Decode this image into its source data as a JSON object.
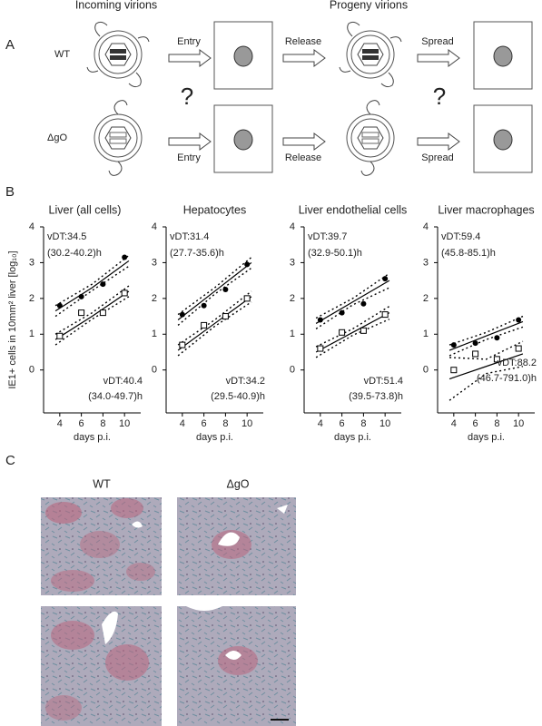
{
  "panel_a": {
    "label": "A",
    "incoming": "Incoming virions",
    "progeny": "Progeny virions",
    "rows": [
      {
        "label": "WT",
        "steps": [
          "Entry",
          "Release",
          "Spread"
        ]
      },
      {
        "label": "ΔgO",
        "steps": [
          "Entry",
          "Release",
          "Spread"
        ]
      }
    ],
    "questions": [
      "?",
      "?"
    ]
  },
  "panel_b": {
    "label": "B"
  },
  "chart_data": [
    {
      "type": "scatter",
      "title": "Liver (all cells)",
      "xlabel": "days p.i.",
      "ylabel": "IE1+ cells in 10mm² liver [log₁₀]",
      "xlim": [
        2.5,
        11.5
      ],
      "xticks": [
        4,
        6,
        8,
        10
      ],
      "ylim": [
        -1.2,
        4
      ],
      "yticks": [
        0,
        1,
        2,
        3,
        4
      ],
      "x": [
        4,
        6,
        8,
        10
      ],
      "series": [
        {
          "marker": "filled",
          "color": "#000000",
          "values": [
            1.8,
            2.05,
            2.4,
            3.15
          ]
        },
        {
          "marker": "open",
          "color": "#000000",
          "values": [
            0.95,
            1.6,
            1.6,
            2.15
          ]
        }
      ],
      "fit_x": [
        3.6,
        7,
        10.4
      ],
      "fits": [
        {
          "values": [
            1.65,
            2.3,
            3.05
          ],
          "lower": [
            1.5,
            2.22,
            2.9
          ],
          "upper": [
            1.8,
            2.4,
            3.2
          ]
        },
        {
          "values": [
            0.85,
            1.5,
            2.2
          ],
          "lower": [
            0.7,
            1.42,
            2.05
          ],
          "upper": [
            1.0,
            1.6,
            2.35
          ]
        }
      ],
      "annotations": [
        "vDT:34.5",
        "(30.2-40.2)h",
        "vDT:40.4",
        "(34.0-49.7)h"
      ]
    },
    {
      "type": "scatter",
      "title": "Hepatocytes",
      "xlabel": "days p.i.",
      "xlim": [
        2.5,
        11.5
      ],
      "xticks": [
        4,
        6,
        8,
        10
      ],
      "ylim": [
        -1.2,
        4
      ],
      "yticks": [
        0,
        1,
        2,
        3,
        4
      ],
      "x": [
        4,
        6,
        8,
        10
      ],
      "series": [
        {
          "marker": "filled",
          "color": "#000000",
          "values": [
            1.55,
            1.8,
            2.25,
            2.95
          ]
        },
        {
          "marker": "open",
          "color": "#000000",
          "values": [
            0.7,
            1.25,
            1.5,
            2.0
          ]
        }
      ],
      "fit_x": [
        3.6,
        7,
        10.4
      ],
      "fits": [
        {
          "values": [
            1.4,
            2.2,
            3.0
          ],
          "lower": [
            1.25,
            2.12,
            2.85
          ],
          "upper": [
            1.55,
            2.3,
            3.15
          ]
        },
        {
          "values": [
            0.55,
            1.3,
            2.05
          ],
          "lower": [
            0.4,
            1.22,
            1.9
          ],
          "upper": [
            0.7,
            1.4,
            2.2
          ]
        }
      ],
      "annotations": [
        "vDT:31.4",
        "(27.7-35.6)h",
        "vDT:34.2",
        "(29.5-40.9)h"
      ]
    },
    {
      "type": "scatter",
      "title": "Liver endothelial cells",
      "xlabel": "days p.i.",
      "xlim": [
        2.5,
        11.5
      ],
      "xticks": [
        4,
        6,
        8,
        10
      ],
      "ylim": [
        -1.2,
        4
      ],
      "yticks": [
        0,
        1,
        2,
        3,
        4
      ],
      "x": [
        4,
        6,
        8,
        10
      ],
      "series": [
        {
          "marker": "filled",
          "color": "#000000",
          "values": [
            1.4,
            1.6,
            1.85,
            2.55
          ]
        },
        {
          "marker": "open",
          "color": "#000000",
          "values": [
            0.6,
            1.05,
            1.1,
            1.55
          ]
        }
      ],
      "fit_x": [
        3.6,
        7,
        10.4
      ],
      "fits": [
        {
          "values": [
            1.3,
            1.9,
            2.5
          ],
          "lower": [
            1.15,
            1.82,
            2.3
          ],
          "upper": [
            1.45,
            2.0,
            2.7
          ]
        },
        {
          "values": [
            0.5,
            1.05,
            1.6
          ],
          "lower": [
            0.35,
            0.97,
            1.42
          ],
          "upper": [
            0.65,
            1.15,
            1.78
          ]
        }
      ],
      "annotations": [
        "vDT:39.7",
        "(32.9-50.1)h",
        "vDT:51.4",
        "(39.5-73.8)h"
      ]
    },
    {
      "type": "scatter",
      "title": "Liver macrophages",
      "xlabel": "days p.i.",
      "xlim": [
        2.5,
        11.5
      ],
      "xticks": [
        4,
        6,
        8,
        10
      ],
      "ylim": [
        -1.2,
        4
      ],
      "yticks": [
        0,
        1,
        2,
        3,
        4
      ],
      "x": [
        4,
        6,
        8,
        10
      ],
      "series": [
        {
          "marker": "filled",
          "color": "#000000",
          "values": [
            0.7,
            0.75,
            0.9,
            1.4
          ]
        },
        {
          "marker": "open",
          "color": "#000000",
          "values": [
            0.0,
            0.45,
            0.3,
            0.6
          ]
        }
      ],
      "fit_x": [
        3.6,
        7,
        10.4
      ],
      "fits": [
        {
          "values": [
            0.55,
            0.95,
            1.35
          ],
          "lower": [
            0.4,
            0.85,
            1.2
          ],
          "upper": [
            0.7,
            1.05,
            1.5
          ]
        },
        {
          "values": [
            -0.25,
            0.1,
            0.45
          ],
          "lower": [
            -0.85,
            -0.1,
            0.1
          ],
          "upper": [
            0.35,
            0.3,
            0.8
          ]
        }
      ],
      "annotations": [
        "vDT:59.4",
        "(45.8-85.1)h",
        "vDT:88.2",
        "(46.7-791.0)h"
      ]
    }
  ],
  "panel_c": {
    "label": "C",
    "columns": [
      "WT",
      "ΔgO"
    ]
  }
}
